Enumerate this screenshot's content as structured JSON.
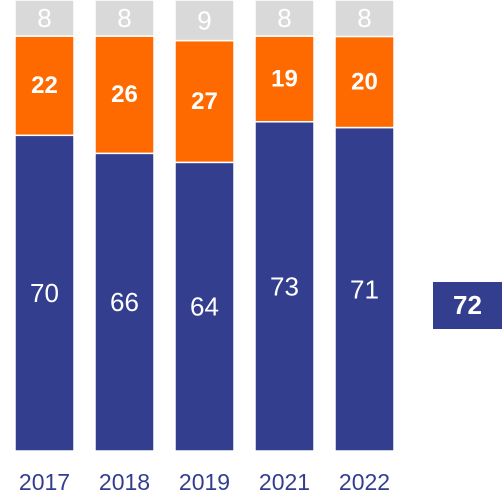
{
  "chart_data": {
    "type": "bar",
    "stacked": "100%",
    "categories": [
      "2017",
      "2018",
      "2019",
      "2021",
      "2022"
    ],
    "series": [
      {
        "values": [
          70,
          66,
          64,
          73,
          71
        ],
        "color": "#343E8E",
        "label_color": "#ffffff",
        "label_weight": "normal"
      },
      {
        "values": [
          22,
          26,
          27,
          19,
          20
        ],
        "color": "#FF6A00",
        "label_color": "#ffffff",
        "label_weight": "bold"
      },
      {
        "values": [
          8,
          8,
          9,
          8,
          8
        ],
        "color": "#D9D9D9",
        "label_color": "#ffffff",
        "label_weight": "normal"
      }
    ],
    "legend": "none",
    "grid": false
  },
  "side_badge": {
    "value": "72",
    "color": "#343E8E"
  }
}
